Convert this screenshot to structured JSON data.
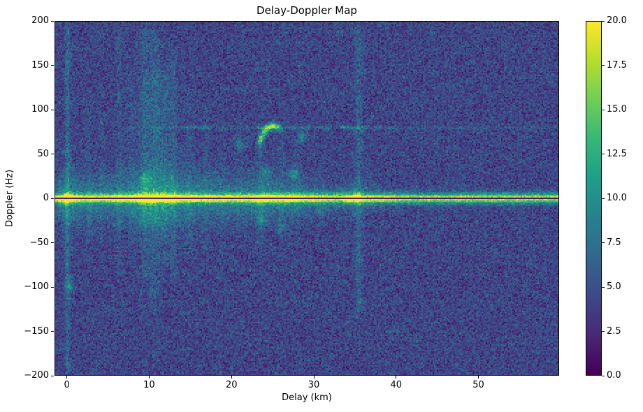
{
  "chart_data": {
    "type": "heatmap",
    "title": "Delay-Doppler Map",
    "xlabel": "Delay (km)",
    "ylabel": "Doppler (Hz)",
    "xlim": [
      -1.5,
      59.8
    ],
    "ylim": [
      -200,
      200
    ],
    "xticks": [
      0,
      10,
      20,
      30,
      40,
      50
    ],
    "yticks": [
      -200,
      -150,
      -100,
      -50,
      0,
      50,
      100,
      150,
      200
    ],
    "colormap": "viridis",
    "viridis_stops": [
      "#440154",
      "#482878",
      "#3e4989",
      "#31688e",
      "#26828e",
      "#1f9e89",
      "#35b779",
      "#6ece58",
      "#b5de2b",
      "#fde725"
    ],
    "colorbar": {
      "min": 0,
      "max": 20,
      "ticks": [
        0,
        2.5,
        5,
        7.5,
        10,
        12.5,
        15,
        17.5,
        20
      ]
    },
    "seed": 1337,
    "noise": {
      "background": 4.2,
      "std": 1.5,
      "speckle_prob": 0.004,
      "speckle_amp": 3.5
    },
    "ridge": {
      "doppler": 0,
      "sigma_hz": 3.5,
      "amplitude_profile": [
        [
          -1.5,
          13
        ],
        [
          -0.5,
          16
        ],
        [
          0,
          20
        ],
        [
          0.7,
          16
        ],
        [
          2,
          13.5
        ],
        [
          4,
          13
        ],
        [
          6,
          14
        ],
        [
          8,
          15
        ],
        [
          9.3,
          18.5
        ],
        [
          10.5,
          18
        ],
        [
          11.5,
          17
        ],
        [
          12.5,
          17.5
        ],
        [
          13.5,
          16
        ],
        [
          15,
          15
        ],
        [
          16.5,
          14.5
        ],
        [
          18,
          14
        ],
        [
          20,
          13.8
        ],
        [
          22,
          14
        ],
        [
          23.5,
          16
        ],
        [
          24.5,
          16.5
        ],
        [
          26,
          15
        ],
        [
          27.5,
          15.5
        ],
        [
          29,
          14
        ],
        [
          31,
          13
        ],
        [
          33,
          12.5
        ],
        [
          35.2,
          16.5
        ],
        [
          36.2,
          13
        ],
        [
          38,
          12
        ],
        [
          40,
          11.5
        ],
        [
          44,
          11
        ],
        [
          50,
          11
        ],
        [
          56,
          11
        ],
        [
          59.8,
          11
        ]
      ],
      "skirt_amp_ratio": 0.28,
      "skirt_sigma_profile": [
        [
          -1.5,
          14
        ],
        [
          0,
          20
        ],
        [
          5,
          18
        ],
        [
          10,
          22
        ],
        [
          15,
          20
        ],
        [
          20,
          17
        ],
        [
          25,
          16
        ],
        [
          28,
          14
        ],
        [
          30,
          12
        ],
        [
          33,
          9
        ],
        [
          35.5,
          12
        ],
        [
          38,
          7
        ],
        [
          42,
          6
        ],
        [
          59.8,
          5
        ]
      ]
    },
    "dark_line": {
      "doppler": 0,
      "halfwidth_hz": 1.3,
      "attenuation": 0.07
    },
    "vertical_streaks": [
      {
        "delay": 0.0,
        "amp": 2.6,
        "width": 0.22,
        "f_range": [
          -200,
          200
        ]
      },
      {
        "delay": 2.6,
        "amp": 0.7,
        "width": 0.25,
        "f_range": [
          -80,
          120
        ]
      },
      {
        "delay": 4.2,
        "amp": 0.6,
        "width": 0.25,
        "f_range": [
          -60,
          100
        ]
      },
      {
        "delay": 6.3,
        "amp": 1.1,
        "width": 0.28,
        "f_range": [
          -90,
          200
        ]
      },
      {
        "delay": 7.9,
        "amp": 0.8,
        "width": 0.3,
        "f_range": [
          -60,
          140
        ]
      },
      {
        "delay": 9.4,
        "amp": 1.5,
        "width": 0.4,
        "f_range": [
          -100,
          200
        ]
      },
      {
        "delay": 10.6,
        "amp": 1.6,
        "width": 0.5,
        "f_range": [
          -120,
          200
        ]
      },
      {
        "delay": 10.8,
        "amp": 0.9,
        "width": 1.6,
        "f_range": [
          -40,
          150
        ]
      },
      {
        "delay": 11.8,
        "amp": 1.2,
        "width": 0.4,
        "f_range": [
          -80,
          160
        ]
      },
      {
        "delay": 12.9,
        "amp": 1.3,
        "width": 0.35,
        "f_range": [
          -100,
          180
        ]
      },
      {
        "delay": 14.8,
        "amp": 0.9,
        "width": 0.35,
        "f_range": [
          -70,
          130
        ]
      },
      {
        "delay": 16.9,
        "amp": 0.7,
        "width": 0.3,
        "f_range": [
          -60,
          110
        ]
      },
      {
        "delay": 19.0,
        "amp": 0.6,
        "width": 0.3,
        "f_range": [
          -50,
          100
        ]
      },
      {
        "delay": 21.0,
        "amp": 0.6,
        "width": 0.3,
        "f_range": [
          -50,
          100
        ]
      },
      {
        "delay": 23.5,
        "amp": 1.3,
        "width": 0.3,
        "f_range": [
          -70,
          90
        ]
      },
      {
        "delay": 26.0,
        "amp": 0.7,
        "width": 0.3,
        "f_range": [
          -50,
          80
        ]
      },
      {
        "delay": 28.0,
        "amp": 0.6,
        "width": 0.3,
        "f_range": [
          -40,
          80
        ]
      },
      {
        "delay": 35.5,
        "amp": 2.0,
        "width": 0.3,
        "f_range": [
          -140,
          200
        ]
      }
    ],
    "horizontal_line": {
      "doppler": 80,
      "sigma": 1.3,
      "base_amp": 1.4,
      "delay_range": [
        7.5,
        59.8
      ],
      "segments": [
        {
          "range": [
            14.5,
            17.5
          ],
          "amp": 3.2
        },
        {
          "range": [
            22.5,
            24.0
          ],
          "amp": 3.0
        },
        {
          "range": [
            27.0,
            29.5
          ],
          "amp": 3.5
        },
        {
          "range": [
            30.5,
            31.8
          ],
          "amp": 2.6
        },
        {
          "range": [
            33.2,
            36.6
          ],
          "amp": 4.0
        },
        {
          "range": [
            38.0,
            40.0
          ],
          "amp": 2.2
        },
        {
          "range": [
            47.0,
            48.5
          ],
          "amp": 1.8
        }
      ]
    },
    "arc": [
      {
        "x": 23.35,
        "y": 63,
        "a": 6,
        "sx": 0.22,
        "sy": 3.5
      },
      {
        "x": 23.6,
        "y": 68,
        "a": 8,
        "sx": 0.22,
        "sy": 3.5
      },
      {
        "x": 23.95,
        "y": 74,
        "a": 9,
        "sx": 0.25,
        "sy": 3.5
      },
      {
        "x": 24.35,
        "y": 79,
        "a": 10,
        "sx": 0.28,
        "sy": 3.0
      },
      {
        "x": 24.85,
        "y": 82,
        "a": 10,
        "sx": 0.3,
        "sy": 2.8
      },
      {
        "x": 25.4,
        "y": 82,
        "a": 8,
        "sx": 0.3,
        "sy": 2.8
      },
      {
        "x": 25.9,
        "y": 79,
        "a": 6,
        "sx": 0.28,
        "sy": 2.8
      }
    ],
    "blobs": [
      {
        "x": 0.25,
        "y": -100,
        "a": 5.0,
        "sx": 0.3,
        "sy": 4.0
      },
      {
        "x": 9.5,
        "y": 22,
        "a": 3.0,
        "sx": 0.45,
        "sy": 6.0
      },
      {
        "x": 24.3,
        "y": 30,
        "a": 4.0,
        "sx": 0.4,
        "sy": 4.5
      },
      {
        "x": 27.6,
        "y": 27,
        "a": 5.0,
        "sx": 0.5,
        "sy": 4.5
      },
      {
        "x": 23.6,
        "y": -25,
        "a": 3.5,
        "sx": 0.45,
        "sy": 5.0
      },
      {
        "x": 26.2,
        "y": -33,
        "a": 2.5,
        "sx": 0.5,
        "sy": 4.0
      },
      {
        "x": 20.9,
        "y": 60,
        "a": 3.0,
        "sx": 0.35,
        "sy": 5.0
      },
      {
        "x": 28.6,
        "y": 70,
        "a": 3.5,
        "sx": 0.35,
        "sy": 5.0
      },
      {
        "x": 31.0,
        "y": -15,
        "a": 2.5,
        "sx": 0.4,
        "sy": 5.0
      }
    ]
  }
}
